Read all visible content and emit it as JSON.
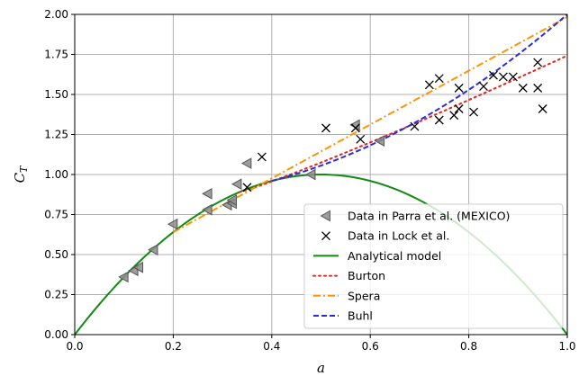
{
  "chart_data": {
    "type": "scatter",
    "xlabel": "a",
    "ylabel": "C",
    "ylabel_sub": "T",
    "xlim": [
      0.0,
      1.0
    ],
    "ylim": [
      0.0,
      2.0
    ],
    "xticks": [
      "0.0",
      "0.2",
      "0.4",
      "0.6",
      "0.8",
      "1.0"
    ],
    "yticks": [
      "0.00",
      "0.25",
      "0.50",
      "0.75",
      "1.00",
      "1.25",
      "1.50",
      "1.75",
      "2.00"
    ],
    "grid": true,
    "legend_position": "lower-right",
    "series": [
      {
        "name": "Data in Parra et al. (MEXICO)",
        "kind": "scatter",
        "marker": "triangle-left",
        "color": "#8c8c8c",
        "points": [
          [
            0.1,
            0.36
          ],
          [
            0.12,
            0.4
          ],
          [
            0.13,
            0.42
          ],
          [
            0.16,
            0.53
          ],
          [
            0.2,
            0.69
          ],
          [
            0.27,
            0.78
          ],
          [
            0.27,
            0.88
          ],
          [
            0.31,
            0.81
          ],
          [
            0.32,
            0.82
          ],
          [
            0.32,
            0.84
          ],
          [
            0.33,
            0.94
          ],
          [
            0.35,
            1.07
          ],
          [
            0.48,
            1.0
          ],
          [
            0.57,
            1.31
          ],
          [
            0.62,
            1.21
          ]
        ]
      },
      {
        "name": "Data in Lock et al.",
        "kind": "scatter",
        "marker": "x",
        "color": "#000000",
        "points": [
          [
            0.35,
            0.92
          ],
          [
            0.38,
            1.11
          ],
          [
            0.51,
            1.29
          ],
          [
            0.57,
            1.29
          ],
          [
            0.58,
            1.22
          ],
          [
            0.69,
            1.3
          ],
          [
            0.72,
            1.56
          ],
          [
            0.74,
            1.6
          ],
          [
            0.74,
            1.34
          ],
          [
            0.77,
            1.37
          ],
          [
            0.78,
            1.41
          ],
          [
            0.78,
            1.54
          ],
          [
            0.81,
            1.39
          ],
          [
            0.83,
            1.55
          ],
          [
            0.85,
            1.62
          ],
          [
            0.87,
            1.61
          ],
          [
            0.89,
            1.61
          ],
          [
            0.91,
            1.54
          ],
          [
            0.94,
            1.54
          ],
          [
            0.94,
            1.7
          ],
          [
            0.95,
            1.41
          ]
        ]
      },
      {
        "name": "Analytical model",
        "kind": "line",
        "style": "solid",
        "color": "#138a13",
        "formula": "4a(1-a)"
      },
      {
        "name": "Burton",
        "kind": "line",
        "style": "dotted",
        "color": "#e3261f"
      },
      {
        "name": "Spera",
        "kind": "line",
        "style": "dashdot",
        "color": "#ff9500"
      },
      {
        "name": "Buhl",
        "kind": "line",
        "style": "dashed",
        "color": "#2b2bd8"
      }
    ]
  }
}
